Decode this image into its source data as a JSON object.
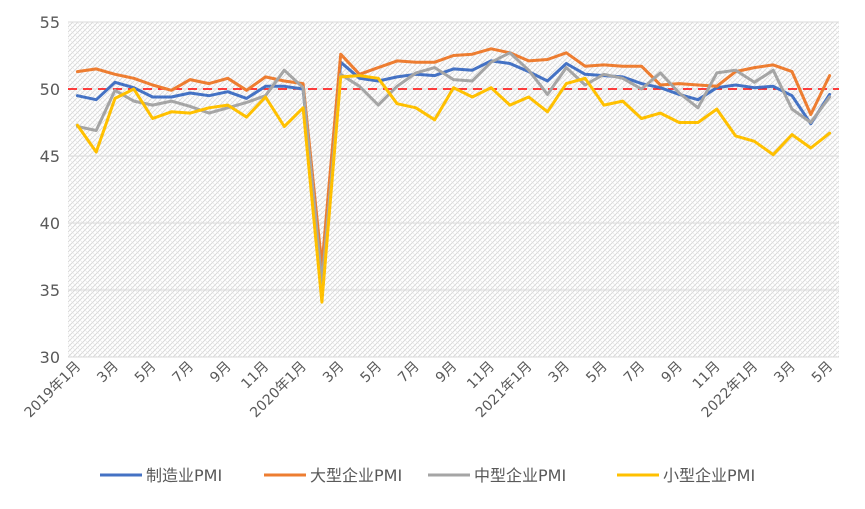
{
  "chart_data": {
    "type": "line",
    "title": "",
    "xlabel": "",
    "ylabel": "",
    "ylim": [
      30,
      55
    ],
    "y_ticks": [
      30,
      35,
      40,
      45,
      50,
      55
    ],
    "grid": true,
    "legend_position": "bottom",
    "reference_line": {
      "value": 50,
      "color": "#FF0000",
      "style": "dashed"
    },
    "x": [
      "2019-01",
      "2019-02",
      "2019-03",
      "2019-04",
      "2019-05",
      "2019-06",
      "2019-07",
      "2019-08",
      "2019-09",
      "2019-10",
      "2019-11",
      "2019-12",
      "2020-01",
      "2020-02",
      "2020-03",
      "2020-04",
      "2020-05",
      "2020-06",
      "2020-07",
      "2020-08",
      "2020-09",
      "2020-10",
      "2020-11",
      "2020-12",
      "2021-01",
      "2021-02",
      "2021-03",
      "2021-04",
      "2021-05",
      "2021-06",
      "2021-07",
      "2021-08",
      "2021-09",
      "2021-10",
      "2021-11",
      "2021-12",
      "2022-01",
      "2022-02",
      "2022-03",
      "2022-04",
      "2022-05"
    ],
    "x_tick_labels": [
      "2019年1月",
      "3月",
      "5月",
      "7月",
      "9月",
      "11月",
      "2020年1月",
      "3月",
      "5月",
      "7月",
      "9月",
      "11月",
      "2021年1月",
      "3月",
      "5月",
      "7月",
      "9月",
      "11月",
      "2022年1月",
      "3月",
      "5月"
    ],
    "x_tick_indices": [
      0,
      2,
      4,
      6,
      8,
      10,
      12,
      14,
      16,
      18,
      20,
      22,
      24,
      26,
      28,
      30,
      32,
      34,
      36,
      38,
      40
    ],
    "series": [
      {
        "name": "制造业PMI",
        "color": "#4472C4",
        "values": [
          49.5,
          49.2,
          50.5,
          50.1,
          49.4,
          49.4,
          49.7,
          49.5,
          49.8,
          49.3,
          50.2,
          50.2,
          50.0,
          35.7,
          52.0,
          50.8,
          50.6,
          50.9,
          51.1,
          51.0,
          51.5,
          51.4,
          52.1,
          51.9,
          51.3,
          50.6,
          51.9,
          51.1,
          51.0,
          50.9,
          50.4,
          50.1,
          49.6,
          49.2,
          50.1,
          50.3,
          50.1,
          50.2,
          49.5,
          47.4,
          49.6
        ]
      },
      {
        "name": "大型企业PMI",
        "color": "#ED7D31",
        "values": [
          51.3,
          51.5,
          51.1,
          50.8,
          50.3,
          49.9,
          50.7,
          50.4,
          50.8,
          49.9,
          50.9,
          50.6,
          50.4,
          36.8,
          52.6,
          51.1,
          51.6,
          52.1,
          52.0,
          52.0,
          52.5,
          52.6,
          53.0,
          52.7,
          52.1,
          52.2,
          52.7,
          51.7,
          51.8,
          51.7,
          51.7,
          50.3,
          50.4,
          50.3,
          50.2,
          51.3,
          51.6,
          51.8,
          51.3,
          48.1,
          51.0
        ]
      },
      {
        "name": "中型企业PMI",
        "color": "#A5A5A5",
        "values": [
          47.2,
          46.9,
          49.9,
          49.1,
          48.8,
          49.1,
          48.7,
          48.2,
          48.6,
          49.0,
          49.5,
          51.4,
          50.1,
          35.5,
          51.1,
          50.2,
          48.8,
          50.2,
          51.2,
          51.6,
          50.7,
          50.6,
          52.0,
          52.7,
          51.4,
          49.6,
          51.6,
          50.3,
          51.1,
          50.8,
          50.0,
          51.2,
          49.7,
          48.6,
          51.2,
          51.4,
          50.5,
          51.4,
          48.5,
          47.5,
          49.4
        ]
      },
      {
        "name": "小型企业PMI",
        "color": "#FFC000",
        "values": [
          47.3,
          45.3,
          49.3,
          50.0,
          47.8,
          48.3,
          48.2,
          48.6,
          48.8,
          47.9,
          49.4,
          47.2,
          48.6,
          34.1,
          50.9,
          51.0,
          50.8,
          48.9,
          48.6,
          47.7,
          50.1,
          49.4,
          50.1,
          48.8,
          49.4,
          48.3,
          50.4,
          50.8,
          48.8,
          49.1,
          47.8,
          48.2,
          47.5,
          47.5,
          48.5,
          46.5,
          46.1,
          45.1,
          46.6,
          45.6,
          46.7
        ]
      }
    ]
  }
}
